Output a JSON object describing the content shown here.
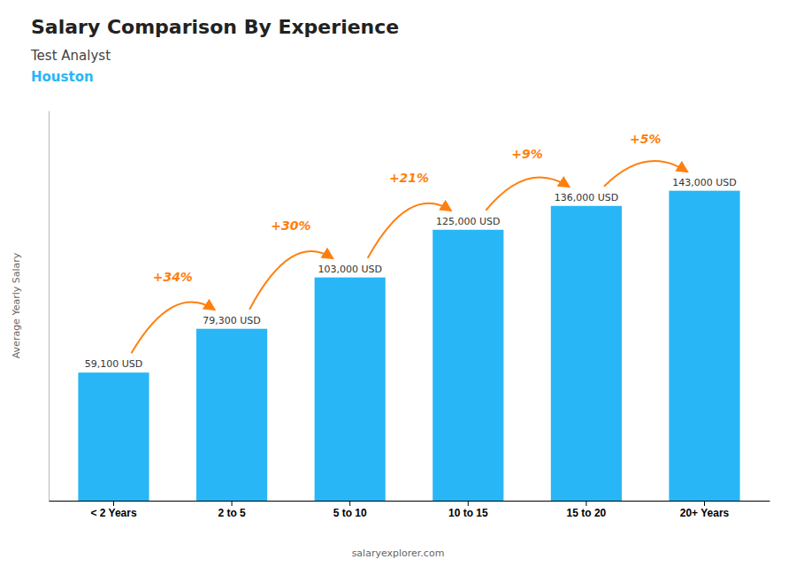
{
  "chart_data": {
    "type": "bar",
    "title": "Salary Comparison By Experience",
    "subtitle": [
      "Test Analyst",
      "Houston"
    ],
    "ylabel": "Average Yearly Salary",
    "footer": "salaryexplorer.com",
    "categories": [
      "< 2 Years",
      "2 to 5",
      "5 to 10",
      "10 to 15",
      "15 to 20",
      "20+ Years"
    ],
    "values": [
      59100,
      79300,
      103000,
      125000,
      136000,
      143000
    ],
    "value_labels": [
      "59,100 USD",
      "79,300 USD",
      "103,000 USD",
      "125,000 USD",
      "136,000 USD",
      "143,000 USD"
    ],
    "data_labels": true,
    "annotations": [
      "+34%",
      "+30%",
      "+21%",
      "+9%",
      "+5%"
    ],
    "color": "#29b6f6",
    "ylim": [
      0,
      180000
    ],
    "tick_labels": "x",
    "grid": false
  }
}
